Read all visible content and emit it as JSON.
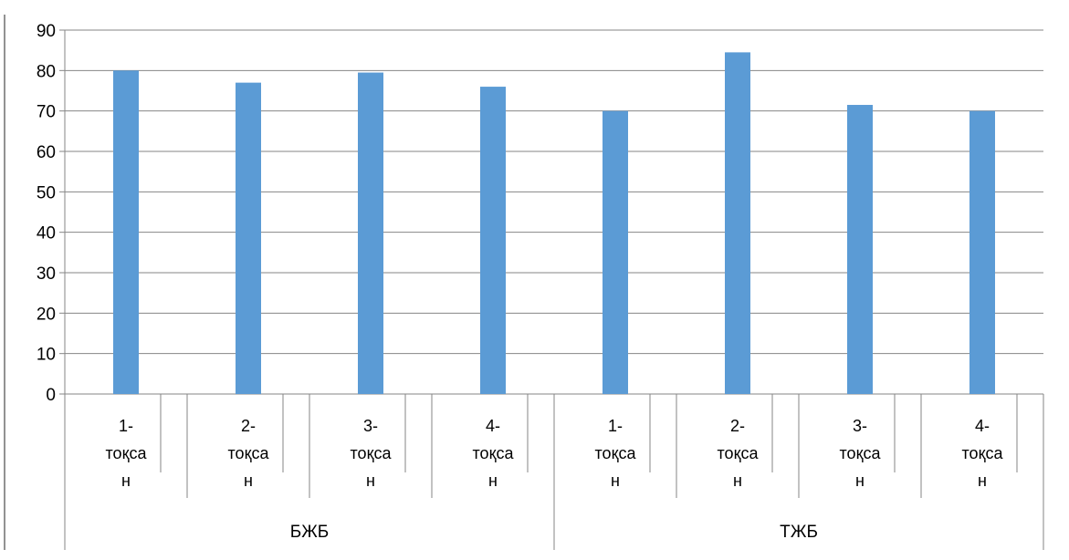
{
  "chart_data": {
    "type": "bar",
    "groups": [
      {
        "label": "БЖБ",
        "categories": [
          "1-\nтоқса\nн",
          "2-\nтоқса\nн",
          "3-\nтоқса\nн",
          "4-\nтоқса\nн"
        ]
      },
      {
        "label": "ТЖБ",
        "categories": [
          "1-\nтоқса\nн",
          "2-\nтоқса\nн",
          "3-\nтоқса\nн",
          "4-\nтоқса\nн"
        ]
      }
    ],
    "series": [
      {
        "values": [
          80,
          77,
          79.5,
          76,
          70,
          84.5,
          71.5,
          70
        ]
      }
    ],
    "ylim": [
      0,
      90
    ],
    "yticks": [
      0,
      10,
      20,
      30,
      40,
      50,
      60,
      70,
      80,
      90
    ],
    "grid": true,
    "legend": "none",
    "colors": {
      "bar": "#5b9bd5",
      "grid": "#868686",
      "axis": "#868686",
      "frame": "#6f6f6f"
    }
  }
}
